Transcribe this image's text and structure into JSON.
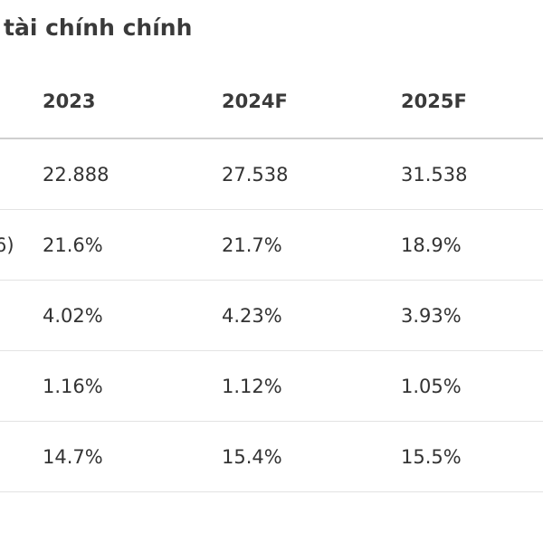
{
  "title": "tài chính chính",
  "table": {
    "columns": [
      "",
      "2023",
      "2024F",
      "2025F"
    ],
    "rows": [
      {
        "label": "",
        "values": [
          "22.888",
          "27.538",
          "31.538"
        ]
      },
      {
        "label": "6)",
        "values": [
          "21.6%",
          "21.7%",
          "18.9%"
        ]
      },
      {
        "label": "",
        "values": [
          "4.02%",
          "4.23%",
          "3.93%"
        ]
      },
      {
        "label": "",
        "values": [
          "1.16%",
          "1.12%",
          "1.05%"
        ]
      },
      {
        "label": "",
        "values": [
          "14.7%",
          "15.4%",
          "15.5%"
        ]
      },
      {
        "label": "",
        "values": [
          "",
          "",
          ""
        ]
      }
    ]
  }
}
